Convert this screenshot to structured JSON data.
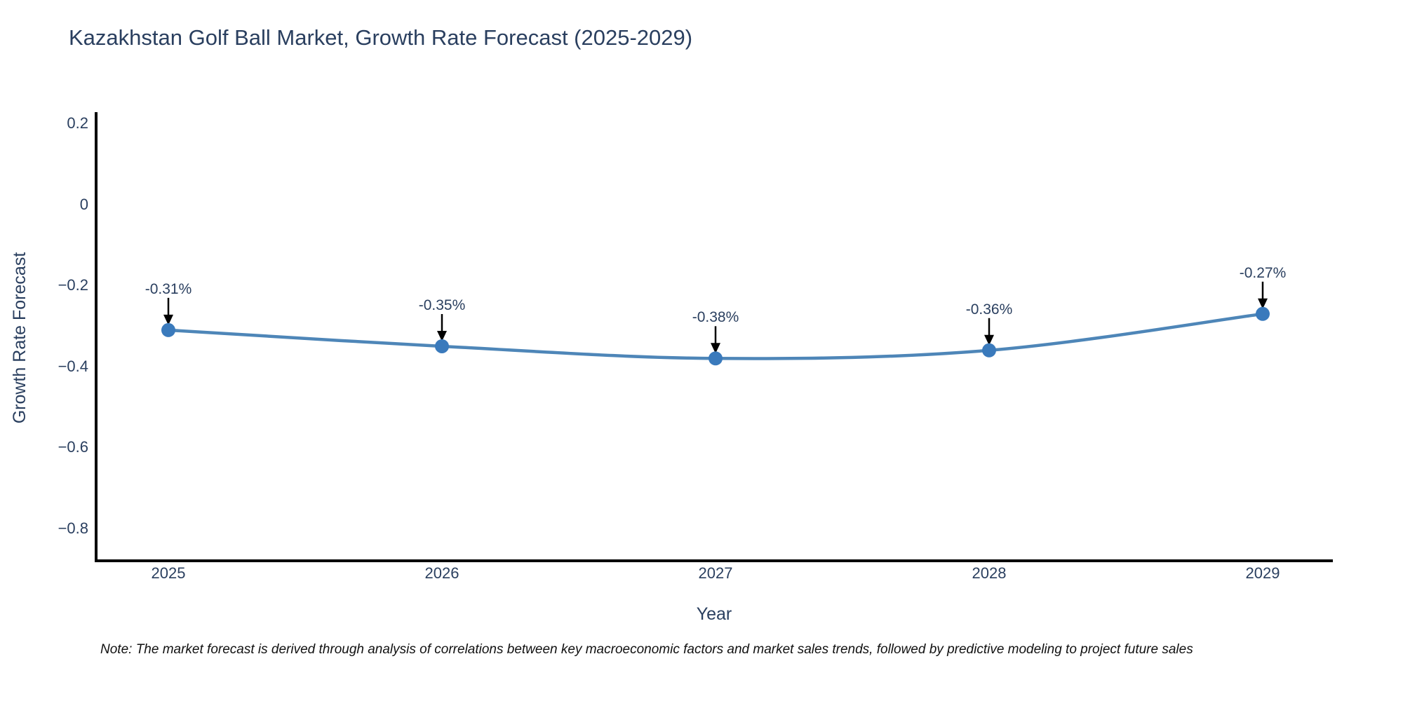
{
  "title": "Kazakhstan Golf Ball Market, Growth Rate Forecast (2025-2029)",
  "note": "Note: The market forecast is derived through analysis of correlations between key macroeconomic factors and market sales trends, followed by predictive modeling to project future sales",
  "chart_data": {
    "type": "line",
    "title": "Kazakhstan Golf Ball Market, Growth Rate Forecast (2025-2029)",
    "xlabel": "Year",
    "ylabel": "Growth Rate Forecast",
    "x": [
      2025,
      2026,
      2027,
      2028,
      2029
    ],
    "series": [
      {
        "name": "Growth Rate Forecast",
        "values": [
          -0.31,
          -0.35,
          -0.38,
          -0.36,
          -0.27
        ]
      }
    ],
    "point_labels": [
      "-0.31%",
      "-0.35%",
      "-0.38%",
      "-0.36%",
      "-0.27%"
    ],
    "y_ticks": [
      0.2,
      0,
      -0.2,
      -0.4,
      -0.6,
      -0.8
    ],
    "y_tick_labels": [
      "0.2",
      "0",
      "−0.2",
      "−0.4",
      "−0.6",
      "−0.8"
    ],
    "ylim": [
      -0.88,
      0.225
    ],
    "grid": false,
    "legend": "none",
    "line_shape": "spline",
    "colors": {
      "line": "#4e86b8",
      "marker": "#3a7abc",
      "axis": "#000000",
      "arrow": "#000000",
      "text": "#2a3f5f"
    }
  }
}
